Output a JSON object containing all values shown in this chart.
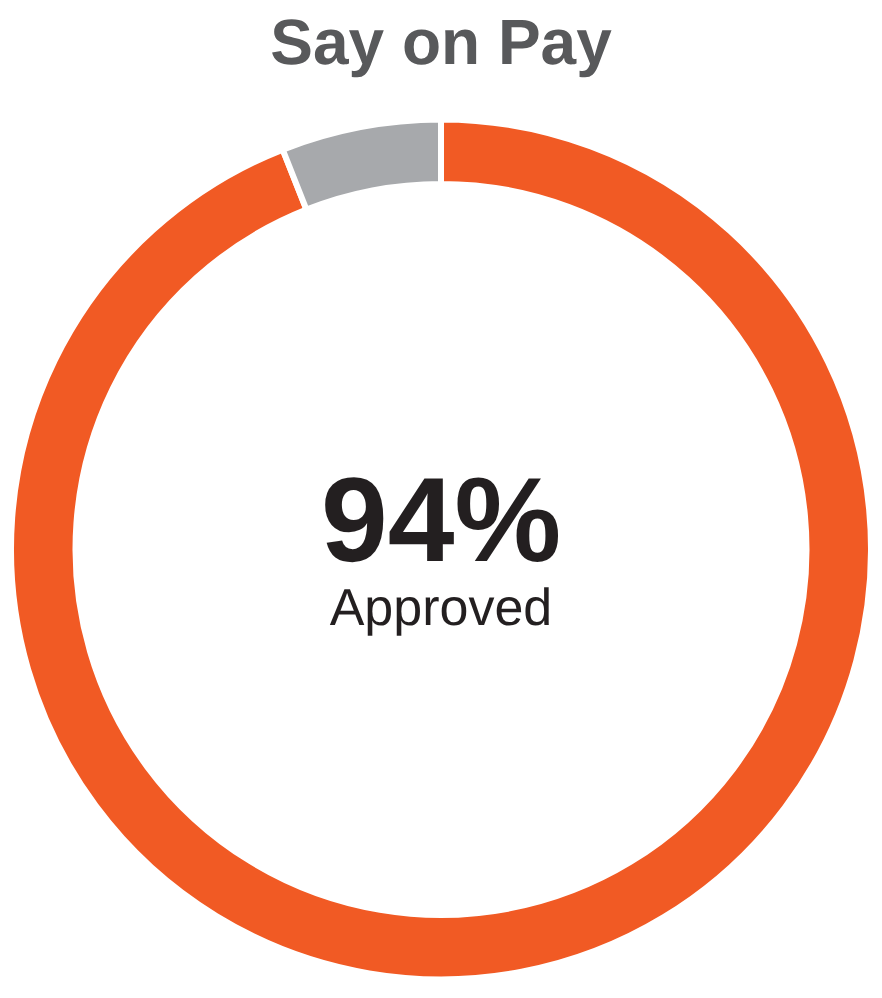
{
  "chart_data": {
    "type": "donut",
    "title": "Say on Pay",
    "categories": [
      "Approved",
      null
    ],
    "values": [
      94,
      6
    ],
    "colors": [
      "#f15a24",
      "#a7a9ac"
    ],
    "value_labels": [
      "94%",
      null
    ],
    "legend": false
  }
}
